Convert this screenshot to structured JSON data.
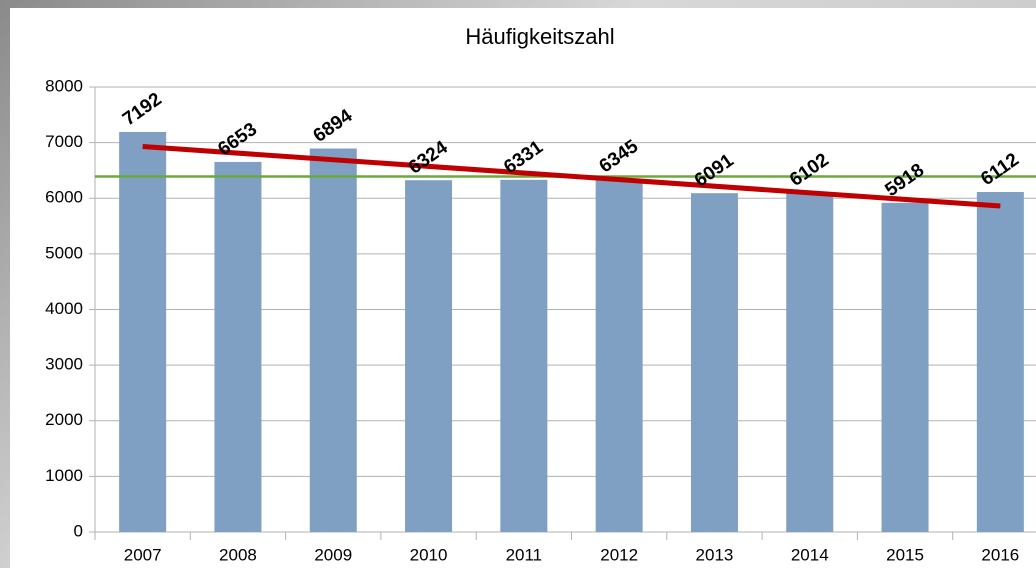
{
  "chart_data": {
    "type": "bar",
    "title": "Häufigkeitszahl",
    "categories": [
      "2007",
      "2008",
      "2009",
      "2010",
      "2011",
      "2012",
      "2013",
      "2014",
      "2015",
      "2016"
    ],
    "values": [
      7192,
      6653,
      6894,
      6324,
      6331,
      6345,
      6091,
      6102,
      5918,
      6112
    ],
    "color": "#7f9fc3",
    "ylim": [
      0,
      8000
    ],
    "yticks": [
      0,
      1000,
      2000,
      3000,
      4000,
      5000,
      6000,
      7000,
      8000
    ],
    "grid": true,
    "mean_line": {
      "value": 6390,
      "color": "#6aaa3a"
    },
    "trend_line": {
      "values": [
        6930,
        5860
      ],
      "color": "#c00000"
    }
  }
}
